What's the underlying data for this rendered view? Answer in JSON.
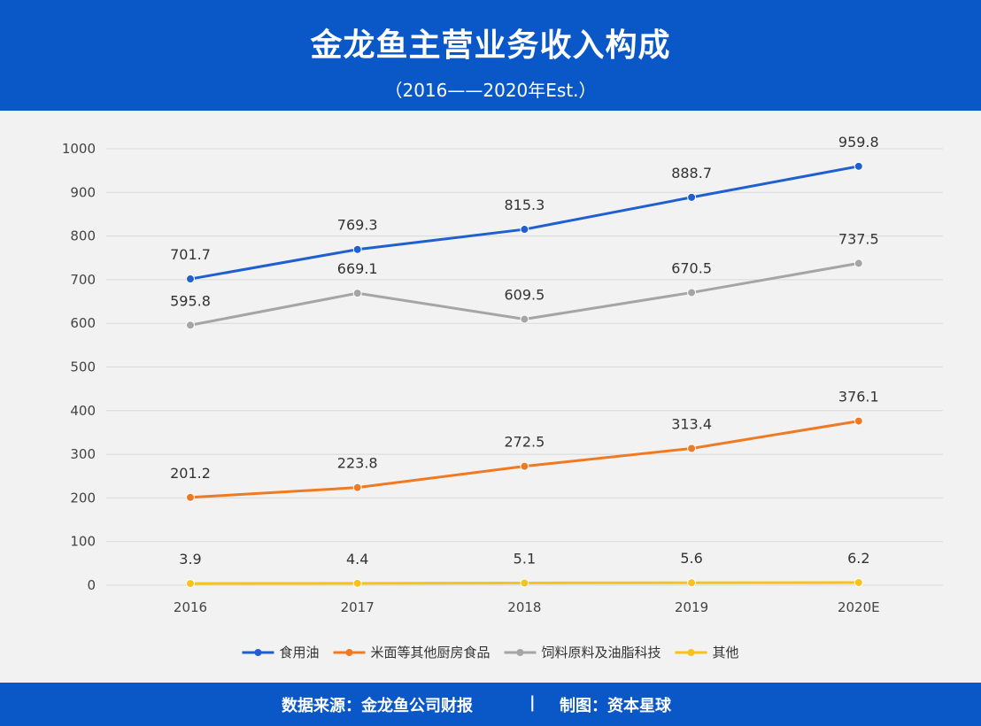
{
  "header": {
    "title": "金龙鱼主营业务收入构成",
    "subtitle": "（2016——2020年Est.）"
  },
  "watermark": "资本星球",
  "footer": {
    "source": "数据来源：金龙鱼公司财报",
    "separator": "|",
    "maker": "制图：资本星球"
  },
  "chart_data": {
    "type": "line",
    "categories": [
      "2016",
      "2017",
      "2018",
      "2019",
      "2020E"
    ],
    "ylim": [
      0,
      1000
    ],
    "yticks": [
      0,
      100,
      200,
      300,
      400,
      500,
      600,
      700,
      800,
      900,
      1000
    ],
    "grid": true,
    "legend_position": "bottom",
    "series": [
      {
        "name": "食用油",
        "color": "#1f5fd0",
        "values": [
          701.7,
          769.3,
          815.3,
          888.7,
          959.8
        ]
      },
      {
        "name": "米面等其他厨房食品",
        "color": "#f07a22",
        "values": [
          201.2,
          223.8,
          272.5,
          313.4,
          376.1
        ]
      },
      {
        "name": "饲料原料及油脂科技",
        "color": "#a5a5a5",
        "values": [
          595.8,
          669.1,
          609.5,
          670.5,
          737.5
        ]
      },
      {
        "name": "其他",
        "color": "#f7c21a",
        "values": [
          3.9,
          4.4,
          5.1,
          5.6,
          6.2
        ]
      }
    ]
  }
}
